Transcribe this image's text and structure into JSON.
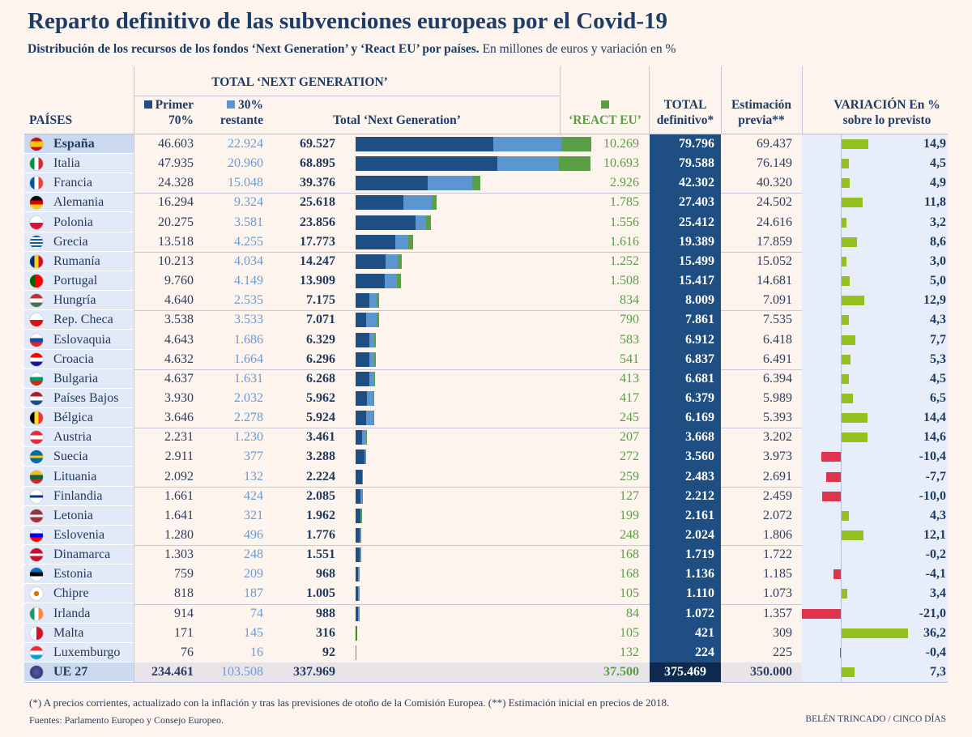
{
  "title": "Reparto definitivo de las subvenciones europeas por el Covid-19",
  "subtitle_bold": "Distribución de los recursos de los fondos ‘Next Generation’ y ‘React EU’ por países.",
  "subtitle_rest": "En millones de euros y variación en %",
  "colors": {
    "primer": "#1f4e82",
    "restante": "#5b96d0",
    "react": "#5a9e46",
    "total_bg": "#1f4e82",
    "var_pos": "#93c01f",
    "var_neg": "#e0334c"
  },
  "chart_data": {
    "type": "table",
    "headers": {
      "paises": "PAÍSES",
      "group": "TOTAL ‘NEXT GENERATION’",
      "primer_1": "Primer",
      "primer_2": "70%",
      "restante_1": "30%",
      "restante_2": "restante",
      "total_ng": "Total ‘Next Generation’",
      "react": "‘REACT EU’",
      "total_def_1": "TOTAL",
      "total_def_2": "definitivo*",
      "previa_1": "Estimación",
      "previa_2": "previa**",
      "var_1": "VARIACIÓN En %",
      "var_2": "sobre lo previsto"
    },
    "rows": [
      {
        "pais": "España",
        "primer": "46.603",
        "restante": "22.924",
        "total_ng": "69.527",
        "react": "10.269",
        "total": "79.796",
        "previa": "69.437",
        "var": "14,9"
      },
      {
        "pais": "Italia",
        "primer": "47.935",
        "restante": "20.960",
        "total_ng": "68.895",
        "react": "10.693",
        "total": "79.588",
        "previa": "76.149",
        "var": "4,5"
      },
      {
        "pais": "Francia",
        "primer": "24.328",
        "restante": "15.048",
        "total_ng": "39.376",
        "react": "2.926",
        "total": "42.302",
        "previa": "40.320",
        "var": "4,9"
      },
      {
        "pais": "Alemania",
        "primer": "16.294",
        "restante": "9.324",
        "total_ng": "25.618",
        "react": "1.785",
        "total": "27.403",
        "previa": "24.502",
        "var": "11,8"
      },
      {
        "pais": "Polonia",
        "primer": "20.275",
        "restante": "3.581",
        "total_ng": "23.856",
        "react": "1.556",
        "total": "25.412",
        "previa": "24.616",
        "var": "3,2"
      },
      {
        "pais": "Grecia",
        "primer": "13.518",
        "restante": "4.255",
        "total_ng": "17.773",
        "react": "1.616",
        "total": "19.389",
        "previa": "17.859",
        "var": "8,6"
      },
      {
        "pais": "Rumanía",
        "primer": "10.213",
        "restante": "4.034",
        "total_ng": "14.247",
        "react": "1.252",
        "total": "15.499",
        "previa": "15.052",
        "var": "3,0"
      },
      {
        "pais": "Portugal",
        "primer": "9.760",
        "restante": "4.149",
        "total_ng": "13.909",
        "react": "1.508",
        "total": "15.417",
        "previa": "14.681",
        "var": "5,0"
      },
      {
        "pais": "Hungría",
        "primer": "4.640",
        "restante": "2.535",
        "total_ng": "7.175",
        "react": "834",
        "total": "8.009",
        "previa": "7.091",
        "var": "12,9"
      },
      {
        "pais": "Rep. Checa",
        "primer": "3.538",
        "restante": "3.533",
        "total_ng": "7.071",
        "react": "790",
        "total": "7.861",
        "previa": "7.535",
        "var": "4,3"
      },
      {
        "pais": "Eslovaquia",
        "primer": "4.643",
        "restante": "1.686",
        "total_ng": "6.329",
        "react": "583",
        "total": "6.912",
        "previa": "6.418",
        "var": "7,7"
      },
      {
        "pais": "Croacia",
        "primer": "4.632",
        "restante": "1.664",
        "total_ng": "6.296",
        "react": "541",
        "total": "6.837",
        "previa": "6.491",
        "var": "5,3"
      },
      {
        "pais": "Bulgaria",
        "primer": "4.637",
        "restante": "1.631",
        "total_ng": "6.268",
        "react": "413",
        "total": "6.681",
        "previa": "6.394",
        "var": "4,5"
      },
      {
        "pais": "Países Bajos",
        "primer": "3.930",
        "restante": "2.032",
        "total_ng": "5.962",
        "react": "417",
        "total": "6.379",
        "previa": "5.989",
        "var": "6,5"
      },
      {
        "pais": "Bélgica",
        "primer": "3.646",
        "restante": "2.278",
        "total_ng": "5.924",
        "react": "245",
        "total": "6.169",
        "previa": "5.393",
        "var": "14,4"
      },
      {
        "pais": "Austria",
        "primer": "2.231",
        "restante": "1.230",
        "total_ng": "3.461",
        "react": "207",
        "total": "3.668",
        "previa": "3.202",
        "var": "14,6"
      },
      {
        "pais": "Suecia",
        "primer": "2.911",
        "restante": "377",
        "total_ng": "3.288",
        "react": "272",
        "total": "3.560",
        "previa": "3.973",
        "var": "-10,4"
      },
      {
        "pais": "Lituania",
        "primer": "2.092",
        "restante": "132",
        "total_ng": "2.224",
        "react": "259",
        "total": "2.483",
        "previa": "2.691",
        "var": "-7,7"
      },
      {
        "pais": "Finlandia",
        "primer": "1.661",
        "restante": "424",
        "total_ng": "2.085",
        "react": "127",
        "total": "2.212",
        "previa": "2.459",
        "var": "-10,0"
      },
      {
        "pais": "Letonia",
        "primer": "1.641",
        "restante": "321",
        "total_ng": "1.962",
        "react": "199",
        "total": "2.161",
        "previa": "2.072",
        "var": "4,3"
      },
      {
        "pais": "Eslovenia",
        "primer": "1.280",
        "restante": "496",
        "total_ng": "1.776",
        "react": "248",
        "total": "2.024",
        "previa": "1.806",
        "var": "12,1"
      },
      {
        "pais": "Dinamarca",
        "primer": "1.303",
        "restante": "248",
        "total_ng": "1.551",
        "react": "168",
        "total": "1.719",
        "previa": "1.722",
        "var": "-0,2"
      },
      {
        "pais": "Estonia",
        "primer": "759",
        "restante": "209",
        "total_ng": "968",
        "react": "168",
        "total": "1.136",
        "previa": "1.185",
        "var": "-4,1"
      },
      {
        "pais": "Chipre",
        "primer": "818",
        "restante": "187",
        "total_ng": "1.005",
        "react": "105",
        "total": "1.110",
        "previa": "1.073",
        "var": "3,4"
      },
      {
        "pais": "Irlanda",
        "primer": "914",
        "restante": "74",
        "total_ng": "988",
        "react": "84",
        "total": "1.072",
        "previa": "1.357",
        "var": "-21,0"
      },
      {
        "pais": "Malta",
        "primer": "171",
        "restante": "145",
        "total_ng": "316",
        "react": "105",
        "total": "421",
        "previa": "309",
        "var": "36,2"
      },
      {
        "pais": "Luxemburgo",
        "primer": "76",
        "restante": "16",
        "total_ng": "92",
        "react": "132",
        "total": "224",
        "previa": "225",
        "var": "-0,4"
      }
    ],
    "total_row": {
      "pais": "UE 27",
      "primer": "234.461",
      "restante": "103.508",
      "total_ng": "337.969",
      "react": "37.500",
      "total": "375.469",
      "previa": "350.000",
      "var": "7,3"
    }
  },
  "footnote": "(*) A precios corrientes, actualizado con la inflación y tras las previsiones de otoño de la Comisión Europea. (**) Estimación inicial en precios de 2018.",
  "sources": "Fuentes: Parlamento Europeo y Consejo Europeo.",
  "credit": "BELÉN TRINCADO / CINCO DÍAS"
}
